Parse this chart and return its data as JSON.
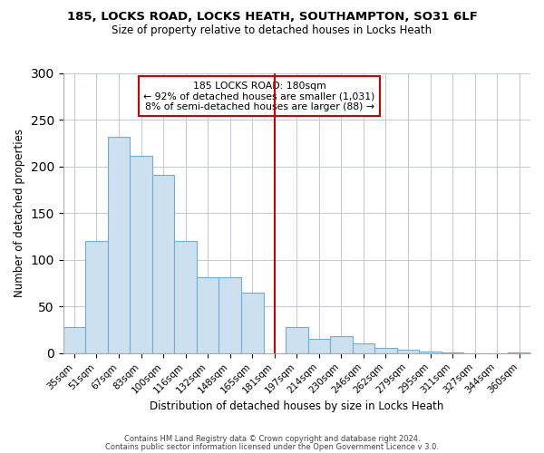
{
  "title1": "185, LOCKS ROAD, LOCKS HEATH, SOUTHAMPTON, SO31 6LF",
  "title2": "Size of property relative to detached houses in Locks Heath",
  "xlabel": "Distribution of detached houses by size in Locks Heath",
  "ylabel": "Number of detached properties",
  "bar_labels": [
    "35sqm",
    "51sqm",
    "67sqm",
    "83sqm",
    "100sqm",
    "116sqm",
    "132sqm",
    "148sqm",
    "165sqm",
    "181sqm",
    "197sqm",
    "214sqm",
    "230sqm",
    "246sqm",
    "262sqm",
    "279sqm",
    "295sqm",
    "311sqm",
    "327sqm",
    "344sqm",
    "360sqm"
  ],
  "bar_heights": [
    28,
    120,
    232,
    211,
    191,
    120,
    81,
    81,
    65,
    0,
    28,
    15,
    18,
    11,
    6,
    4,
    2,
    1,
    0,
    0,
    1
  ],
  "bar_color": "#cce0f0",
  "bar_edge_color": "#6baed6",
  "vline_x": 9,
  "vline_color": "#cc0000",
  "annotation_title": "185 LOCKS ROAD: 180sqm",
  "annotation_line1": "← 92% of detached houses are smaller (1,031)",
  "annotation_line2": "8% of semi-detached houses are larger (88) →",
  "annotation_box_edge": "#cc0000",
  "ylim": [
    0,
    300
  ],
  "yticks": [
    0,
    50,
    100,
    150,
    200,
    250,
    300
  ],
  "footer1": "Contains HM Land Registry data © Crown copyright and database right 2024.",
  "footer2": "Contains public sector information licensed under the Open Government Licence v 3.0."
}
